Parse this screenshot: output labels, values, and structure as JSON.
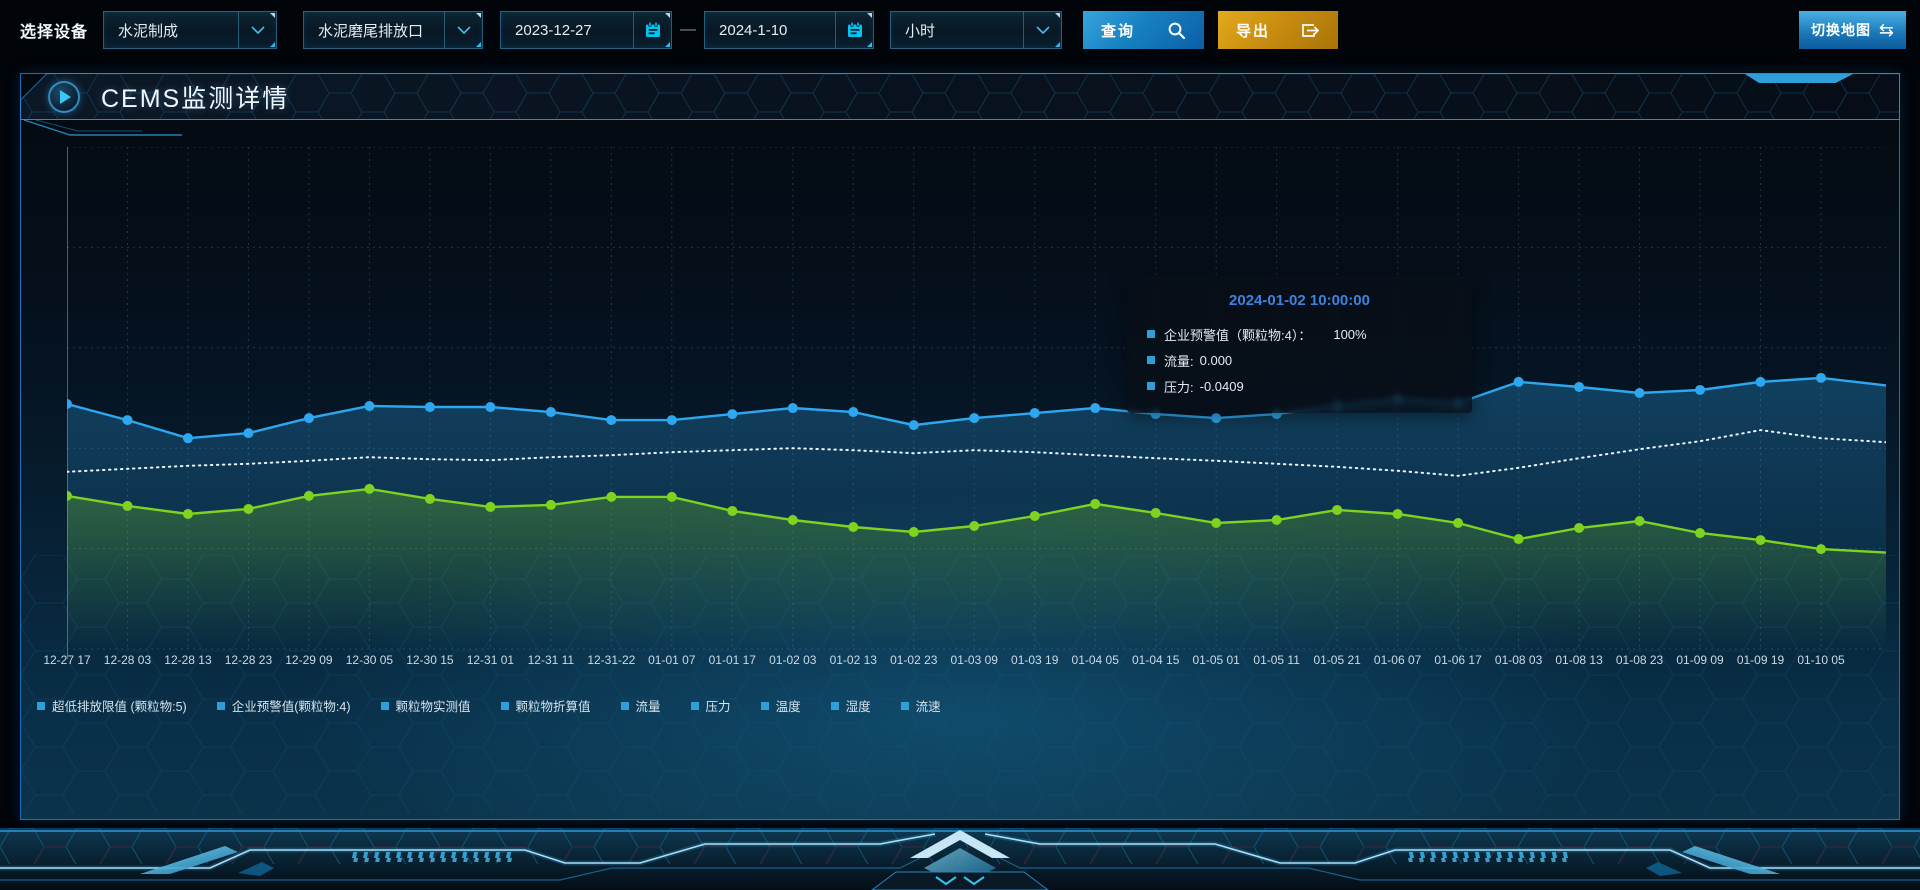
{
  "toolbar": {
    "device_label": "选择设备",
    "selects": [
      {
        "value": "水泥制成"
      },
      {
        "value": "水泥磨尾排放口"
      },
      {
        "value": "小时"
      }
    ],
    "date_range": {
      "start": "2023-12-27",
      "separator": "—",
      "end": "2024-1-10"
    },
    "query_label": "查询",
    "export_label": "导出",
    "switch_map_label": "切换地图",
    "icons": {
      "swap_glyph": "⇆"
    }
  },
  "panel": {
    "title": "CEMS监测详情"
  },
  "tooltip": {
    "title": "2024-01-02 10:00:00",
    "items": [
      {
        "label": "企业预警值（颗粒物:4）：",
        "value": "100%"
      },
      {
        "label": "流量:",
        "value": "0.000"
      },
      {
        "label": "压力:",
        "value": "-0.0409"
      }
    ]
  },
  "chart_data": {
    "type": "line",
    "title": "CEMS监测详情",
    "categories": [
      "12-27 17",
      "12-28 03",
      "12-28 13",
      "12-28 23",
      "12-29 09",
      "12-30 05",
      "12-30 15",
      "12-31 01",
      "12-31 11",
      "12-31-22",
      "01-01 07",
      "01-01 17",
      "01-02 03",
      "01-02 13",
      "01-02 23",
      "01-03 09",
      "01-03 19",
      "01-04 05",
      "01-04 15",
      "01-05 01",
      "01-05 11",
      "01-05 21",
      "01-06 07",
      "01-06 17",
      "01-08 03",
      "01-08 13",
      "01-08 23",
      "01-09 09",
      "01-09 19",
      "01-10 05"
    ],
    "series": [
      {
        "name": "企业预警值(颗粒物:4)",
        "color": "#2da8f0",
        "style": "solid-markers",
        "area": true,
        "values": [
          48.8,
          45.6,
          42.0,
          43.0,
          46.0,
          48.4,
          48.2,
          48.2,
          47.2,
          45.6,
          45.6,
          46.8,
          48.0,
          47.2,
          44.6,
          46.0,
          47.0,
          48.0,
          46.8,
          46.0,
          46.8,
          48.4,
          49.8,
          49.0,
          53.2,
          52.2,
          51.0,
          51.6,
          53.2,
          54.0
        ],
        "edge_value": 52.5
      },
      {
        "name": "流量",
        "color": "#e8f3fa",
        "style": "dotted",
        "area": false,
        "values": [
          35.3,
          35.9,
          36.5,
          36.9,
          37.5,
          38.2,
          37.8,
          37.6,
          38.2,
          38.6,
          39.2,
          39.6,
          40.0,
          39.6,
          39.0,
          39.6,
          39.2,
          38.6,
          38.0,
          37.5,
          36.9,
          36.3,
          35.5,
          34.5,
          36.1,
          38.0,
          39.8,
          41.4,
          43.6,
          42.0
        ],
        "edge_value": 41.2
      },
      {
        "name": "压力",
        "color": "#7ed321",
        "style": "solid-markers",
        "area": true,
        "values": [
          30.5,
          28.5,
          26.9,
          27.9,
          30.5,
          31.9,
          29.9,
          28.3,
          28.7,
          30.3,
          30.3,
          27.5,
          25.7,
          24.3,
          23.3,
          24.5,
          26.5,
          28.9,
          27.1,
          25.1,
          25.7,
          27.7,
          26.9,
          25.1,
          21.9,
          24.1,
          25.5,
          23.1,
          21.7,
          19.9
        ],
        "edge_value": 19.2
      }
    ],
    "legend": [
      "超低排放限值 (颗粒物:5)",
      "企业预警值(颗粒物:4)",
      "颗粒物实测值",
      "颗粒物折算值",
      "流量",
      "压力",
      "温度",
      "湿度",
      "流速"
    ],
    "legend_position": "bottom",
    "legend_marker_color": "#2f9fd9",
    "xlabel": "",
    "ylabel": "",
    "ylim": [
      0,
      100
    ],
    "y_axis_labels_visible": false,
    "grid": true,
    "grid_h_lines": 6
  }
}
